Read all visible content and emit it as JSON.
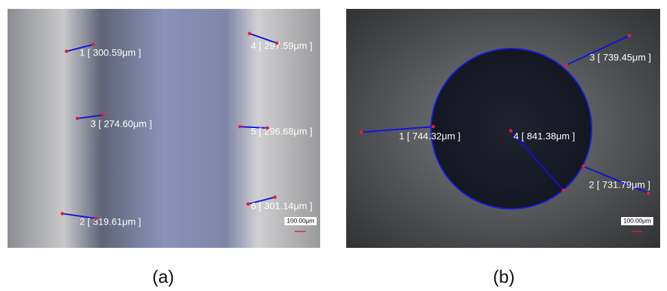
{
  "panels": [
    {
      "caption": "(a)",
      "scale_bar": "100.00μm",
      "measurements": [
        "1 [ 300.59μm ]",
        "3 [ 274.60μm ]",
        "2 [ 319.61μm ]",
        "4 [ 297.59μm ]",
        "5 [ 296.68μm ]",
        "6 [ 301.14μm ]"
      ]
    },
    {
      "caption": "(b)",
      "scale_bar": "100.00μm",
      "measurements": [
        "1 [ 744.32μm ]",
        "3 [ 739.45μm ]",
        "4 [ 841.38μm ]",
        "2 [ 731.79μm ]"
      ]
    }
  ]
}
